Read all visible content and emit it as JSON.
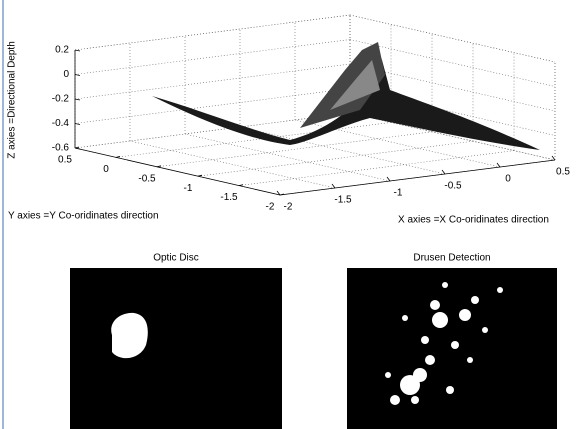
{
  "chart_data": {
    "type": "surface",
    "xlabel": "X axies =X Co-oridinates direction",
    "ylabel": "Y axies =Y Co-oridinates direction",
    "zlabel": "Z axies =Directional Depth",
    "xlim": [
      -2,
      0.5
    ],
    "xticks": [
      -2,
      -1.5,
      -1,
      -0.5,
      0,
      0.5
    ],
    "ylim": [
      -2,
      0.5
    ],
    "yticks": [
      -2,
      -1.5,
      -1,
      -0.5,
      0,
      0.5
    ],
    "zlim": [
      -0.6,
      0.2
    ],
    "zticks": [
      -0.6,
      -0.4,
      -0.2,
      0,
      0.2
    ],
    "grid": true
  },
  "panels": [
    {
      "title": "Optic Disc"
    },
    {
      "title": "Drusen Detection"
    }
  ]
}
